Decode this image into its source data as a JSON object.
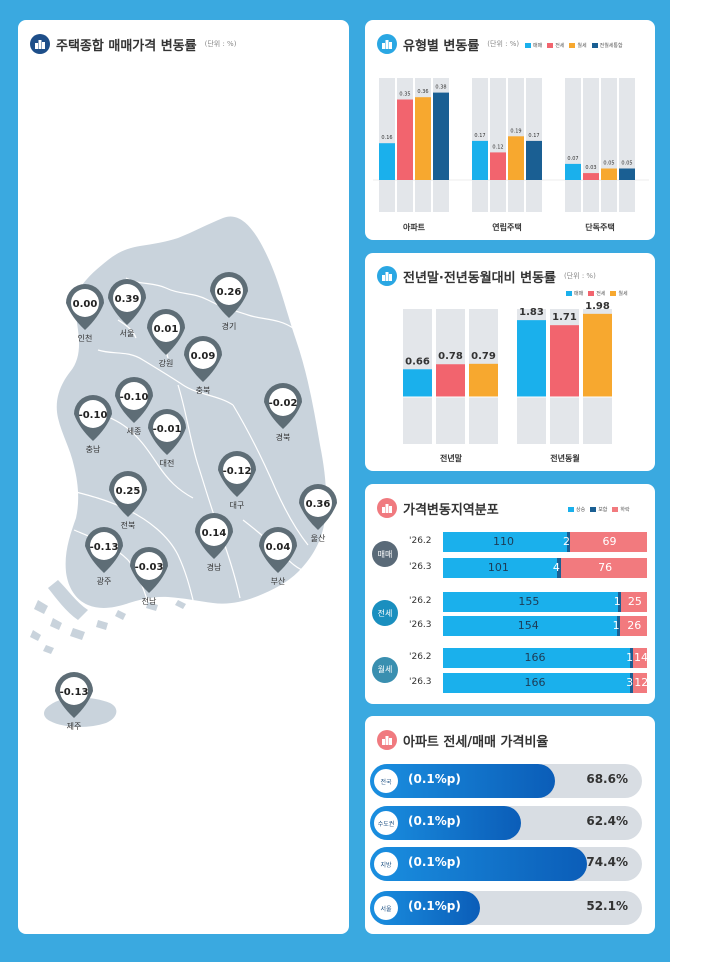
{
  "colors": {
    "maemae": "#1ab0ec",
    "jeonse": "#f2646e",
    "wolse": "#f7a82f",
    "wolse_convert": "#1a5f93",
    "up": "#1ab0ec",
    "flat": "#1a5f93",
    "down": "#f27a7e",
    "map": "#c9d3dc",
    "pin": "#5e6d76"
  },
  "map_panel": {
    "title": "주택종합 매매가격 변동률",
    "unit": "(단위 : %)",
    "regions": [
      {
        "name": "인천",
        "value": "0.00"
      },
      {
        "name": "서울",
        "value": "0.39"
      },
      {
        "name": "강원",
        "value": "0.01"
      },
      {
        "name": "경기",
        "value": "0.26"
      },
      {
        "name": "충북",
        "value": "0.09"
      },
      {
        "name": "세종",
        "value": "-0.10"
      },
      {
        "name": "충남",
        "value": "-0.10"
      },
      {
        "name": "대전",
        "value": "-0.01"
      },
      {
        "name": "경북",
        "value": "-0.02"
      },
      {
        "name": "대구",
        "value": "-0.12"
      },
      {
        "name": "전북",
        "value": "0.25"
      },
      {
        "name": "울산",
        "value": "0.36"
      },
      {
        "name": "경남",
        "value": "0.14"
      },
      {
        "name": "부산",
        "value": "0.04"
      },
      {
        "name": "광주",
        "value": "-0.13"
      },
      {
        "name": "전남",
        "value": "-0.03"
      },
      {
        "name": "제주",
        "value": "-0.13"
      }
    ]
  },
  "chart_data": [
    {
      "type": "bar",
      "title": "유형별 변동률",
      "unit": "(단위 : %)",
      "categories": [
        "아파트",
        "연립주택",
        "단독주택"
      ],
      "series": [
        {
          "name": "매매",
          "values": [
            0.16,
            0.17,
            0.07
          ]
        },
        {
          "name": "전세",
          "values": [
            0.35,
            0.12,
            0.03
          ]
        },
        {
          "name": "월세",
          "values": [
            0.36,
            0.19,
            0.05
          ]
        },
        {
          "name": "전월세통합",
          "values": [
            0.38,
            0.17,
            0.05
          ]
        }
      ]
    },
    {
      "type": "bar",
      "title": "전년말·전년동월대비 변동률",
      "unit": "(단위 : %)",
      "categories": [
        "전년말",
        "전년동월"
      ],
      "series": [
        {
          "name": "매매",
          "values": [
            0.66,
            1.83
          ]
        },
        {
          "name": "전세",
          "values": [
            0.78,
            1.71
          ]
        },
        {
          "name": "월세",
          "values": [
            0.79,
            1.98
          ]
        }
      ]
    },
    {
      "type": "bar",
      "title": "가격변동지역분포",
      "stacked": true,
      "legend": [
        "상승",
        "보합",
        "하락"
      ],
      "groups": [
        {
          "name": "매매",
          "rows": [
            {
              "label": "'26.2",
              "up": 110,
              "flat": 2,
              "down": 69
            },
            {
              "label": "'26.3",
              "up": 101,
              "flat": 4,
              "down": 76
            }
          ]
        },
        {
          "name": "전세",
          "rows": [
            {
              "label": "'26.2",
              "up": 155,
              "flat": 1,
              "down": 25
            },
            {
              "label": "'26.3",
              "up": 154,
              "flat": 1,
              "down": 26
            }
          ]
        },
        {
          "name": "월세",
          "rows": [
            {
              "label": "'26.2",
              "up": 166,
              "flat": 1,
              "down": 14
            },
            {
              "label": "'26.3",
              "up": 166,
              "flat": 3,
              "down": 12
            }
          ]
        }
      ]
    },
    {
      "type": "bar",
      "title": "아파트 전세/매매 가격비율",
      "categories": [
        "전국",
        "수도권",
        "지방",
        "서울"
      ],
      "values": [
        68.6,
        62.4,
        74.4,
        52.1
      ],
      "delta_labels": [
        "(0.1%p)",
        "(0.1%p)",
        "(0.1%p)",
        "(0.1%p)"
      ],
      "value_labels": [
        "68.6%",
        "62.4%",
        "74.4%",
        "52.1%"
      ]
    }
  ]
}
